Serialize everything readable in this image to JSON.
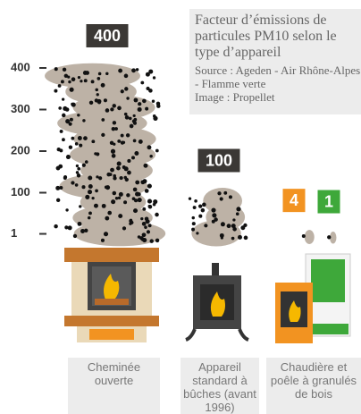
{
  "chart_data": {
    "type": "cloud",
    "title": "Facteur d’émissions de particules PM10 selon le type d’appareil",
    "source": "Source : Ageden - Air Rhône-Alpes - Flamme verte",
    "credit": "Image : Propellet",
    "categories": [
      "Cheminée ouverte",
      "Appareil standard à bûches (avant 1996)",
      "Chaudière et poêle à granulés de bois",
      null
    ],
    "values": [
      400,
      100,
      4,
      1
    ],
    "colors": [
      "#3b3835",
      "#3b3835",
      "#f29321",
      "#3ea83a"
    ],
    "ylim": [
      0,
      400
    ],
    "yticks": [
      400,
      300,
      200,
      100,
      1
    ]
  }
}
